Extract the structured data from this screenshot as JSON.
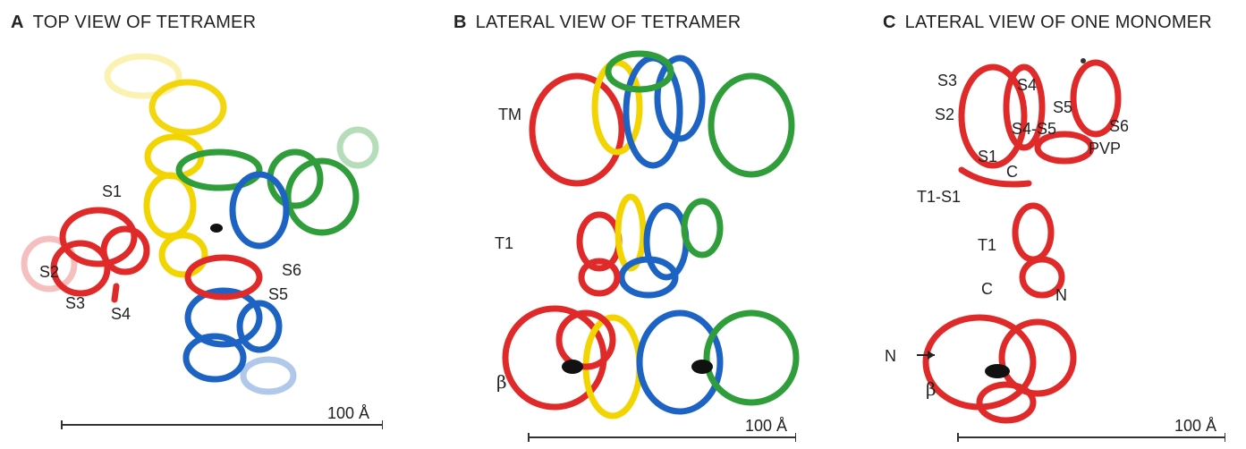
{
  "panels": {
    "a": {
      "letter": "A",
      "title": "TOP VIEW OF TETRAMER",
      "labels": {
        "s1": "S1",
        "s2": "S2",
        "s3": "S3",
        "s4": "S4",
        "s5": "S5",
        "s6": "S6"
      },
      "scale": "100 Å"
    },
    "b": {
      "letter": "B",
      "title": "LATERAL VIEW OF TETRAMER",
      "labels": {
        "tm": "TM",
        "t1": "T1",
        "beta": "β"
      },
      "scale": "100 Å"
    },
    "c": {
      "letter": "C",
      "title": "LATERAL VIEW OF ONE MONOMER",
      "labels": {
        "s3": "S3",
        "s4": "S4",
        "s5": "S5",
        "s6": "S6",
        "s2": "S2",
        "s4s5": "S4-S5",
        "pvp": "PVP",
        "s1": "S1",
        "c_upper": "C",
        "t1s1": "T1-S1",
        "t1": "T1",
        "c_lower": "C",
        "n_inner": "N",
        "n_arrow": "N",
        "beta": "β"
      },
      "scale": "100 Å"
    }
  },
  "colors": {
    "subunit_red": "#e02a2a",
    "subunit_yellow": "#f2d400",
    "subunit_green": "#2f9e3a",
    "subunit_blue": "#1d63c4",
    "ligand": "#111111"
  }
}
